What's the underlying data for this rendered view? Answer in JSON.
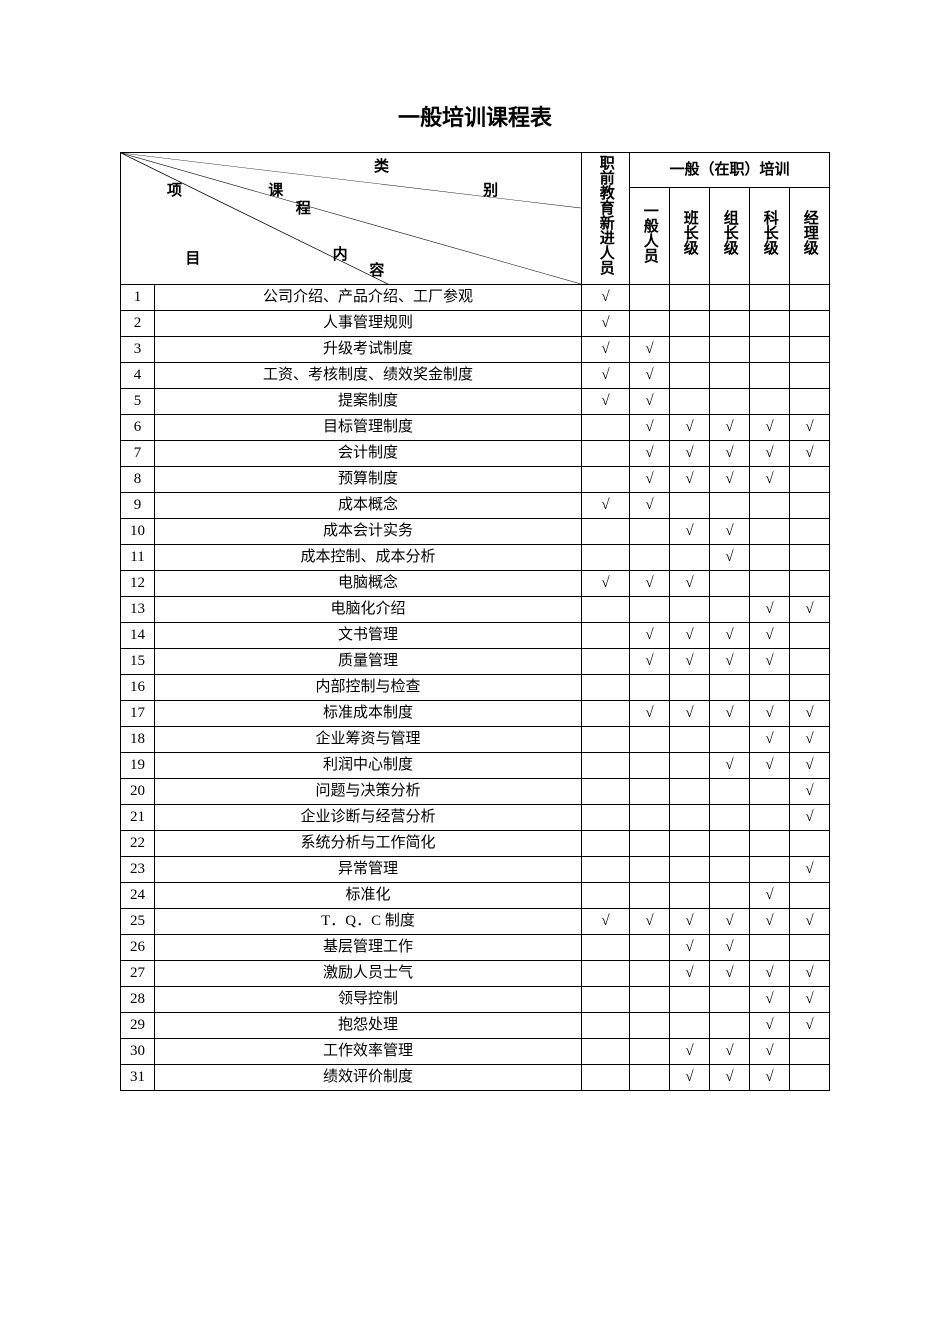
{
  "title": "一般培训课程表",
  "header": {
    "diag_labels": {
      "lei": "类",
      "bie": "别",
      "xiang": "项",
      "mu": "目",
      "ke": "课",
      "cheng": "程",
      "nei": "内",
      "rong": "容"
    },
    "pre_training": "职前教育新进人员",
    "on_job_training": "一般（在职）培训",
    "levels": {
      "general": "一般人员",
      "ban": "班长级",
      "zu": "组长级",
      "ke": "科长级",
      "mgr": "经理级"
    }
  },
  "check_mark": "√",
  "rows": [
    {
      "n": "1",
      "course": "公司介绍、产品介绍、工厂参观",
      "pre": true,
      "gen": false,
      "ban": false,
      "zu": false,
      "ke": false,
      "mgr": false
    },
    {
      "n": "2",
      "course": "人事管理规则",
      "pre": true,
      "gen": false,
      "ban": false,
      "zu": false,
      "ke": false,
      "mgr": false
    },
    {
      "n": "3",
      "course": "升级考试制度",
      "pre": true,
      "gen": true,
      "ban": false,
      "zu": false,
      "ke": false,
      "mgr": false
    },
    {
      "n": "4",
      "course": "工资、考核制度、绩效奖金制度",
      "pre": true,
      "gen": true,
      "ban": false,
      "zu": false,
      "ke": false,
      "mgr": false
    },
    {
      "n": "5",
      "course": "提案制度",
      "pre": true,
      "gen": true,
      "ban": false,
      "zu": false,
      "ke": false,
      "mgr": false
    },
    {
      "n": "6",
      "course": "目标管理制度",
      "pre": false,
      "gen": true,
      "ban": true,
      "zu": true,
      "ke": true,
      "mgr": true
    },
    {
      "n": "7",
      "course": "会计制度",
      "pre": false,
      "gen": true,
      "ban": true,
      "zu": true,
      "ke": true,
      "mgr": true
    },
    {
      "n": "8",
      "course": "预算制度",
      "pre": false,
      "gen": true,
      "ban": true,
      "zu": true,
      "ke": true,
      "mgr": false
    },
    {
      "n": "9",
      "course": "成本概念",
      "pre": true,
      "gen": true,
      "ban": false,
      "zu": false,
      "ke": false,
      "mgr": false
    },
    {
      "n": "10",
      "course": "成本会计实务",
      "pre": false,
      "gen": false,
      "ban": true,
      "zu": true,
      "ke": false,
      "mgr": false
    },
    {
      "n": "11",
      "course": "成本控制、成本分析",
      "pre": false,
      "gen": false,
      "ban": false,
      "zu": true,
      "ke": false,
      "mgr": false
    },
    {
      "n": "12",
      "course": "电脑概念",
      "pre": true,
      "gen": true,
      "ban": true,
      "zu": false,
      "ke": false,
      "mgr": false
    },
    {
      "n": "13",
      "course": "电脑化介绍",
      "pre": false,
      "gen": false,
      "ban": false,
      "zu": false,
      "ke": true,
      "mgr": true
    },
    {
      "n": "14",
      "course": "文书管理",
      "pre": false,
      "gen": true,
      "ban": true,
      "zu": true,
      "ke": true,
      "mgr": false
    },
    {
      "n": "15",
      "course": "质量管理",
      "pre": false,
      "gen": true,
      "ban": true,
      "zu": true,
      "ke": true,
      "mgr": false
    },
    {
      "n": "16",
      "course": "内部控制与检查",
      "pre": false,
      "gen": false,
      "ban": false,
      "zu": false,
      "ke": false,
      "mgr": false
    },
    {
      "n": "17",
      "course": "标准成本制度",
      "pre": false,
      "gen": true,
      "ban": true,
      "zu": true,
      "ke": true,
      "mgr": true
    },
    {
      "n": "18",
      "course": "企业筹资与管理",
      "pre": false,
      "gen": false,
      "ban": false,
      "zu": false,
      "ke": true,
      "mgr": true
    },
    {
      "n": "19",
      "course": "利润中心制度",
      "pre": false,
      "gen": false,
      "ban": false,
      "zu": true,
      "ke": true,
      "mgr": true
    },
    {
      "n": "20",
      "course": "问题与决策分析",
      "pre": false,
      "gen": false,
      "ban": false,
      "zu": false,
      "ke": false,
      "mgr": true
    },
    {
      "n": "21",
      "course": "企业诊断与经营分析",
      "pre": false,
      "gen": false,
      "ban": false,
      "zu": false,
      "ke": false,
      "mgr": true
    },
    {
      "n": "22",
      "course": "系统分析与工作简化",
      "pre": false,
      "gen": false,
      "ban": false,
      "zu": false,
      "ke": false,
      "mgr": false
    },
    {
      "n": "23",
      "course": "异常管理",
      "pre": false,
      "gen": false,
      "ban": false,
      "zu": false,
      "ke": false,
      "mgr": true
    },
    {
      "n": "24",
      "course": "标准化",
      "pre": false,
      "gen": false,
      "ban": false,
      "zu": false,
      "ke": true,
      "mgr": false
    },
    {
      "n": "25",
      "course": "T．Q．C 制度",
      "pre": true,
      "gen": true,
      "ban": true,
      "zu": true,
      "ke": true,
      "mgr": true
    },
    {
      "n": "26",
      "course": "基层管理工作",
      "pre": false,
      "gen": false,
      "ban": true,
      "zu": true,
      "ke": false,
      "mgr": false
    },
    {
      "n": "27",
      "course": "激励人员士气",
      "pre": false,
      "gen": false,
      "ban": true,
      "zu": true,
      "ke": true,
      "mgr": true
    },
    {
      "n": "28",
      "course": "领导控制",
      "pre": false,
      "gen": false,
      "ban": false,
      "zu": false,
      "ke": true,
      "mgr": true
    },
    {
      "n": "29",
      "course": "抱怨处理",
      "pre": false,
      "gen": false,
      "ban": false,
      "zu": false,
      "ke": true,
      "mgr": true
    },
    {
      "n": "30",
      "course": "工作效率管理",
      "pre": false,
      "gen": false,
      "ban": true,
      "zu": true,
      "ke": true,
      "mgr": false
    },
    {
      "n": "31",
      "course": "绩效评价制度",
      "pre": false,
      "gen": false,
      "ban": true,
      "zu": true,
      "ke": true,
      "mgr": false
    }
  ]
}
